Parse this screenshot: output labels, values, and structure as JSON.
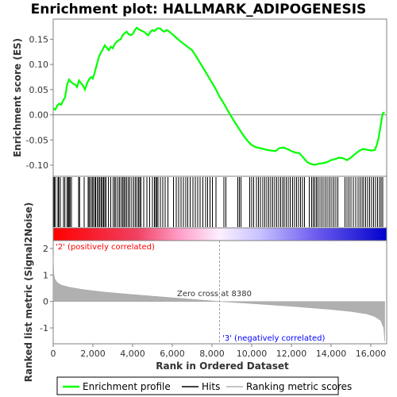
{
  "chart_data": [
    {
      "type": "line",
      "title": "Enrichment plot: HALLMARK_ADIPOGENESIS",
      "xlabel": "",
      "ylabel": "Enrichment score (ES)",
      "xlim": [
        0,
        16800
      ],
      "ylim": [
        -0.122,
        0.19
      ],
      "yticks": [
        0.15,
        0.1,
        0.05,
        0.0,
        -0.05,
        -0.1
      ],
      "ytick_labels": [
        "0.15",
        "0.10",
        "0.05",
        "0.00",
        "-0.05",
        "-0.10"
      ],
      "grid": false,
      "series": [
        {
          "name": "Enrichment profile",
          "color": "#00ff00",
          "x": [
            0,
            100,
            200,
            300,
            400,
            500,
            600,
            700,
            800,
            900,
            1000,
            1100,
            1200,
            1300,
            1400,
            1500,
            1600,
            1700,
            1800,
            1900,
            2000,
            2100,
            2200,
            2300,
            2400,
            2500,
            2600,
            2700,
            2800,
            2900,
            3000,
            3100,
            3200,
            3300,
            3400,
            3500,
            3600,
            3700,
            3800,
            3900,
            4000,
            4100,
            4200,
            4300,
            4400,
            4500,
            4600,
            4700,
            4800,
            4900,
            5000,
            5100,
            5200,
            5300,
            5400,
            5500,
            5600,
            5700,
            5800,
            5900,
            6000,
            6200,
            6400,
            6600,
            6800,
            7000,
            7200,
            7400,
            7600,
            7800,
            8000,
            8200,
            8380,
            8600,
            8800,
            9000,
            9200,
            9400,
            9600,
            9800,
            10000,
            10200,
            10400,
            10600,
            10800,
            11000,
            11200,
            11400,
            11600,
            11800,
            12000,
            12200,
            12400,
            12600,
            12800,
            13000,
            13200,
            13400,
            13600,
            13800,
            14000,
            14200,
            14400,
            14600,
            14800,
            15000,
            15200,
            15400,
            15600,
            15800,
            16000,
            16200,
            16300,
            16400,
            16500,
            16600,
            16700
          ],
          "y": [
            0.013,
            0.01,
            0.018,
            0.022,
            0.02,
            0.028,
            0.035,
            0.06,
            0.07,
            0.065,
            0.062,
            0.06,
            0.055,
            0.068,
            0.063,
            0.058,
            0.05,
            0.062,
            0.07,
            0.075,
            0.072,
            0.085,
            0.1,
            0.115,
            0.123,
            0.13,
            0.138,
            0.133,
            0.128,
            0.135,
            0.132,
            0.14,
            0.145,
            0.148,
            0.15,
            0.158,
            0.162,
            0.165,
            0.16,
            0.158,
            0.16,
            0.167,
            0.173,
            0.17,
            0.168,
            0.166,
            0.164,
            0.16,
            0.158,
            0.165,
            0.168,
            0.166,
            0.17,
            0.172,
            0.171,
            0.167,
            0.165,
            0.168,
            0.167,
            0.163,
            0.16,
            0.153,
            0.146,
            0.14,
            0.134,
            0.128,
            0.116,
            0.103,
            0.09,
            0.077,
            0.064,
            0.05,
            0.036,
            0.022,
            0.008,
            -0.005,
            -0.018,
            -0.03,
            -0.042,
            -0.052,
            -0.06,
            -0.064,
            -0.066,
            -0.068,
            -0.07,
            -0.071,
            -0.072,
            -0.066,
            -0.065,
            -0.068,
            -0.072,
            -0.075,
            -0.076,
            -0.085,
            -0.094,
            -0.098,
            -0.099,
            -0.097,
            -0.096,
            -0.094,
            -0.09,
            -0.088,
            -0.085,
            -0.086,
            -0.09,
            -0.085,
            -0.078,
            -0.072,
            -0.068,
            -0.069,
            -0.071,
            -0.07,
            -0.06,
            -0.045,
            -0.02,
            0.003,
            0.005
          ]
        }
      ]
    },
    {
      "type": "hits",
      "name": "Hits",
      "positions": [
        10,
        60,
        120,
        240,
        280,
        360,
        520,
        590,
        700,
        760,
        800,
        850,
        920,
        1280,
        1330,
        1560,
        1760,
        1810,
        1880,
        1960,
        2010,
        2090,
        2140,
        2220,
        2290,
        2350,
        2420,
        2480,
        2540,
        2600,
        2660,
        2780,
        2900,
        3020,
        3100,
        3160,
        3260,
        3340,
        3420,
        3500,
        3560,
        3620,
        3700,
        3780,
        3860,
        3960,
        4060,
        4140,
        4220,
        4300,
        4360,
        4420,
        4560,
        4720,
        4860,
        5000,
        5100,
        5160,
        5220,
        5280,
        5400,
        5520,
        5640,
        5780,
        6060,
        6200,
        6320,
        6440,
        6560,
        6680,
        6780,
        6900,
        7040,
        7160,
        7280,
        7400,
        7540,
        7680,
        7780,
        7900,
        8020,
        8200,
        8600,
        8700,
        9300,
        9380,
        9460,
        9900,
        10000,
        10100,
        10240,
        10340,
        10440,
        10560,
        10660,
        10760,
        10860,
        10960,
        11060,
        11160,
        11260,
        11360,
        11460,
        11560,
        11640,
        11740,
        11840,
        11940,
        12060,
        12160,
        12260,
        12360,
        12460,
        12560,
        12660,
        12900,
        13020,
        13100,
        13180,
        13260,
        13340,
        13440,
        13540,
        13640,
        13740,
        13840,
        13940,
        14040,
        14140,
        14240,
        14340,
        14700,
        14800,
        14900,
        15000,
        15120,
        15240,
        15360,
        15460,
        15560,
        15640,
        15740,
        15840,
        15940,
        16040,
        16140,
        16240,
        16340,
        16440,
        16520,
        16600
      ]
    },
    {
      "type": "area",
      "ylabel": "Ranked list metric (Signal2Noise)",
      "xlabel": "Rank in Ordered Dataset",
      "xlim": [
        0,
        16800
      ],
      "ylim": [
        -1.6,
        2.3
      ],
      "yticks": [
        2,
        1,
        0,
        -1
      ],
      "ytick_labels": [
        "2",
        "1",
        "0",
        "-1"
      ],
      "xticks": [
        0,
        2000,
        4000,
        6000,
        8000,
        10000,
        12000,
        14000,
        16000
      ],
      "xtick_labels": [
        "0",
        "2,000",
        "4,000",
        "6,000",
        "8,000",
        "10,000",
        "12,000",
        "14,000",
        "16,000"
      ],
      "series": [
        {
          "name": "Ranking metric scores",
          "color": "#b0b0b0",
          "x": [
            0,
            30,
            80,
            200,
            400,
            800,
            1500,
            2500,
            4000,
            6000,
            8380,
            10000,
            12000,
            14000,
            15000,
            15800,
            16200,
            16500,
            16650,
            16700
          ],
          "y": [
            1.75,
            1.05,
            0.85,
            0.72,
            0.62,
            0.54,
            0.45,
            0.36,
            0.26,
            0.14,
            0.0,
            -0.08,
            -0.18,
            -0.3,
            -0.38,
            -0.47,
            -0.57,
            -0.72,
            -1.0,
            -1.5
          ]
        }
      ],
      "annotations": {
        "positive": "'2' (positively correlated)",
        "negative": "'3' (negatively correlated)",
        "zero_cross": "Zero cross at 8380",
        "zero_cross_x": 8380
      }
    }
  ],
  "legend": {
    "placement": "bottom",
    "items": [
      {
        "label": "Enrichment profile",
        "color": "#00ff00"
      },
      {
        "label": "Hits",
        "color": "#000000"
      },
      {
        "label": "Ranking metric scores",
        "color": "#b0b0b0"
      }
    ]
  },
  "colors": {
    "positive_label": "#ff0000",
    "negative_label": "#0000ff",
    "gradient": [
      "#ff0000",
      "#ffb6d9",
      "#ffffff",
      "#c8c8ff",
      "#0000cc"
    ]
  }
}
